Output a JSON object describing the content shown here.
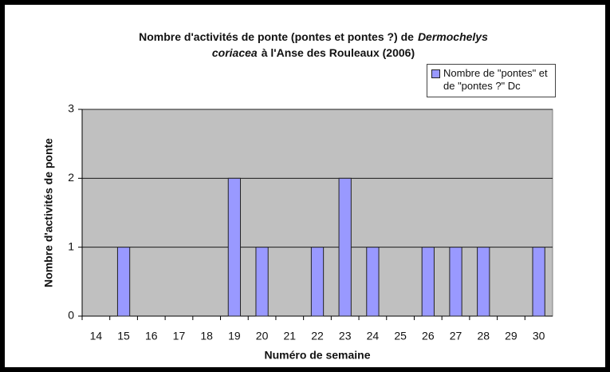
{
  "chart_data": {
    "type": "bar",
    "title_lines": [
      [
        "Nombre d'activités de ponte (pontes et pontes ?) de",
        "Dermochelys"
      ],
      [
        "coriacea",
        "à l'Anse des Rouleaux (2006)"
      ]
    ],
    "x_label": "Numéro de semaine",
    "y_label": "Nombre d'activités de ponte",
    "categories": [
      "14",
      "15",
      "16",
      "17",
      "18",
      "19",
      "20",
      "21",
      "22",
      "23",
      "24",
      "25",
      "26",
      "27",
      "28",
      "29",
      "30"
    ],
    "series": [
      {
        "name": "Nombre de \"pontes\" et de \"pontes ?\" Dc",
        "color": "#9999ff",
        "values": [
          0,
          1,
          0,
          0,
          0,
          2,
          1,
          0,
          1,
          2,
          1,
          0,
          1,
          1,
          1,
          0,
          1
        ]
      }
    ],
    "ylim": [
      0,
      3
    ],
    "yticks": [
      0,
      1,
      2,
      3
    ],
    "grid": true,
    "legend": "top-right"
  }
}
